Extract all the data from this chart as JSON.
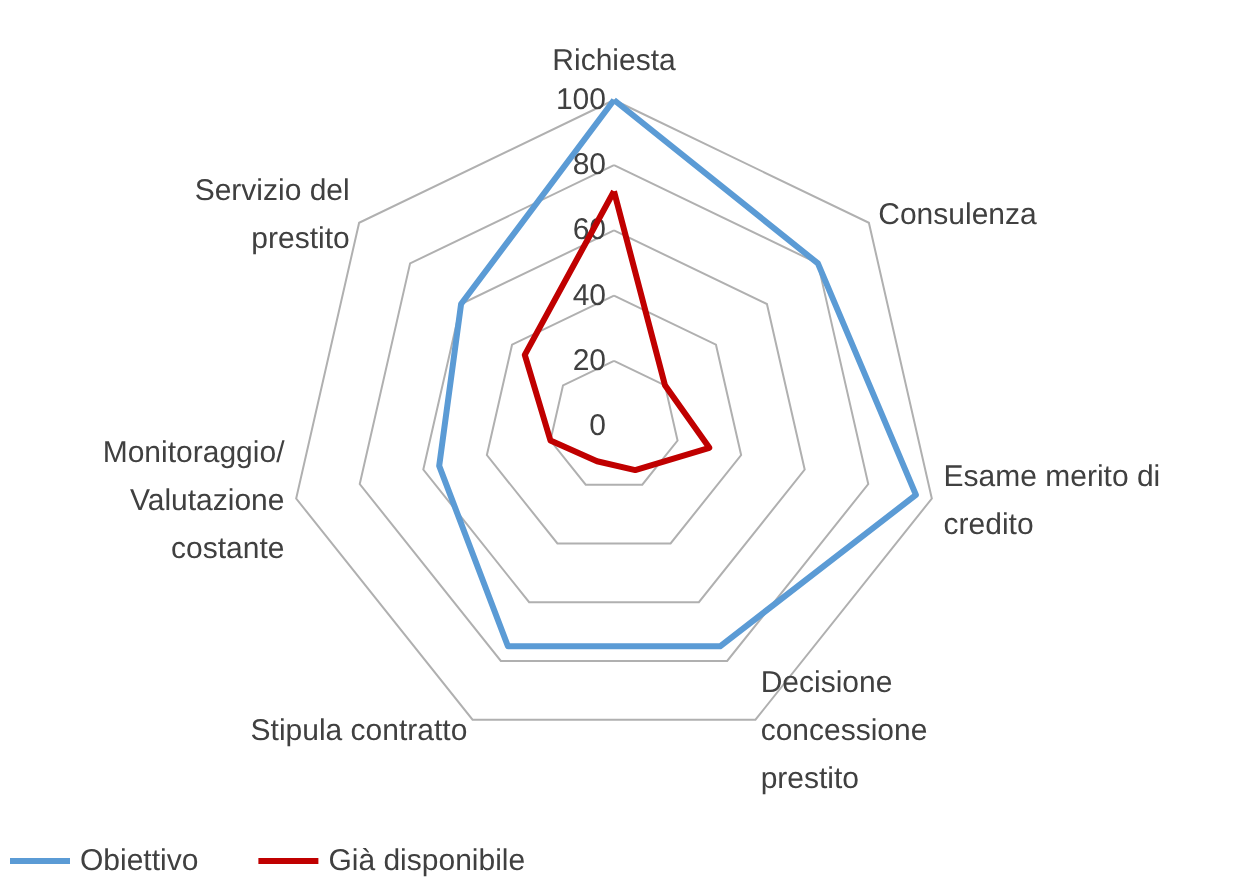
{
  "chart_data": {
    "type": "radar",
    "categories": [
      "Richiesta",
      "Consulenza",
      "Esame merito di\ncredito",
      "Decisione\nconcessione\nprestito",
      "Stipula contratto",
      "Monitoraggio/\nValutazione\ncostante",
      "Servizio del\nprestito"
    ],
    "series": [
      {
        "name": "Obiettivo",
        "color": "#5b9bd5",
        "values": [
          100,
          80,
          95,
          75,
          75,
          55,
          60
        ]
      },
      {
        "name": "Già disponibile",
        "color": "#c00000",
        "values": [
          72,
          20,
          30,
          15,
          12,
          20,
          35
        ]
      }
    ],
    "ylim": [
      0,
      100
    ],
    "yticks": [
      0,
      20,
      40,
      60,
      80,
      100
    ],
    "grid": true,
    "legend": "bottom left",
    "marker": "none",
    "line_style": "solid"
  }
}
